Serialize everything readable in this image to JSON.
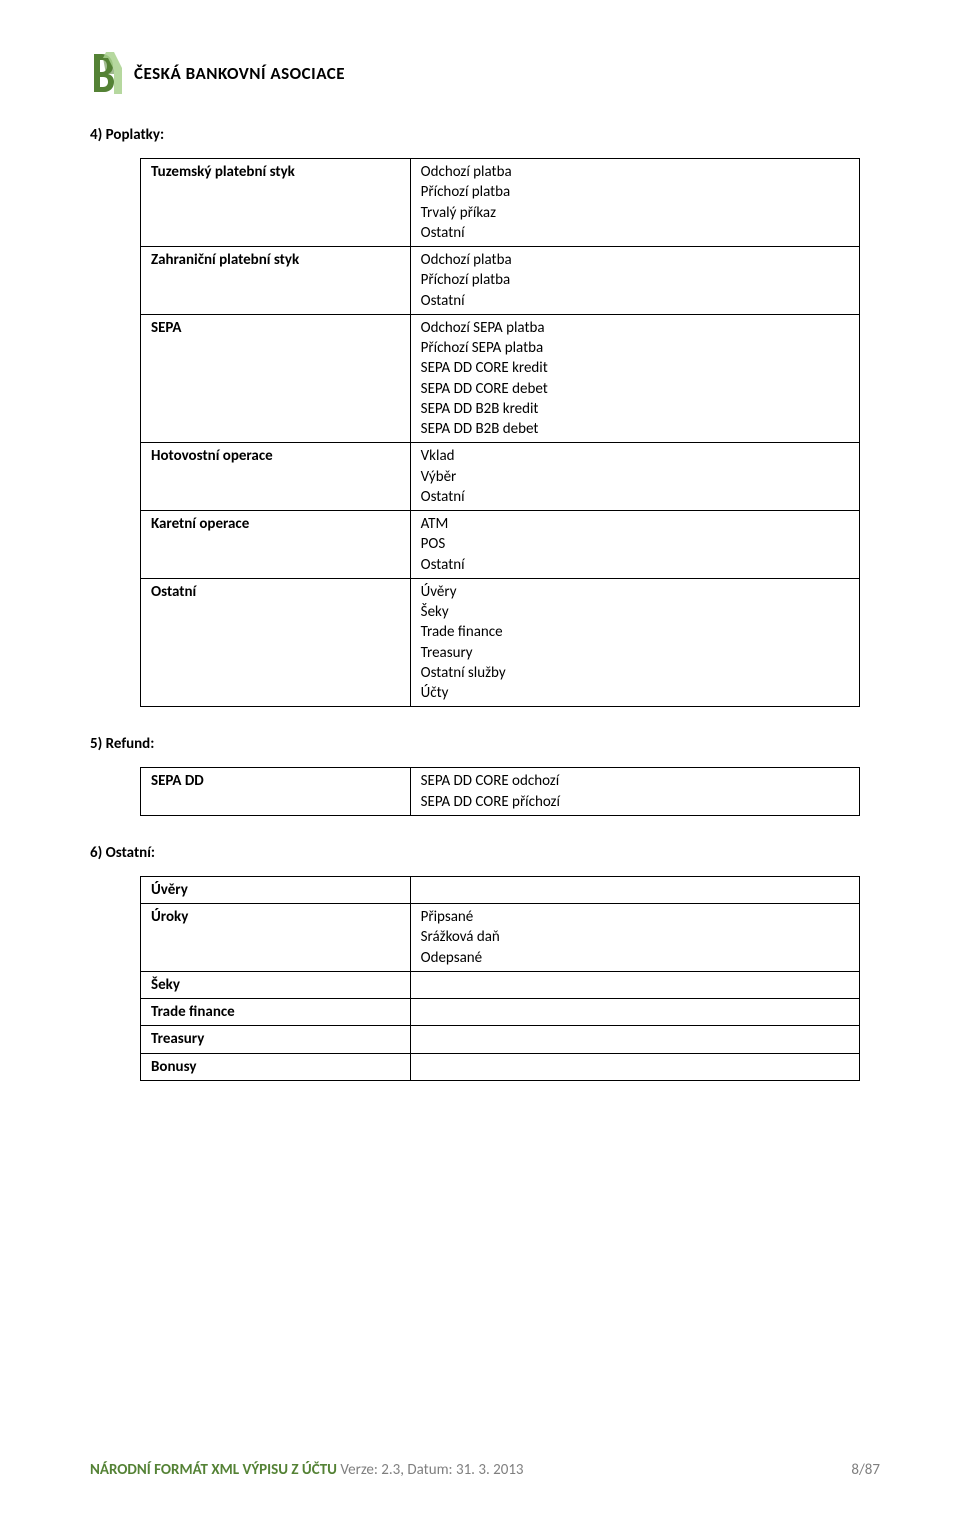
{
  "header": {
    "org_name": "ČESKÁ BANKOVNÍ ASOCIACE"
  },
  "section4": {
    "heading": "4) Poplatky:",
    "rows": [
      {
        "label": "Tuzemský platební styk",
        "values": "Odchozí platba\nPříchozí platba\nTrvalý příkaz\nOstatní"
      },
      {
        "label": "Zahraniční platební styk",
        "values": "Odchozí platba\nPříchozí platba\nOstatní"
      },
      {
        "label": "SEPA",
        "values": "Odchozí SEPA platba\nPříchozí SEPA platba\nSEPA DD CORE kredit\nSEPA DD CORE debet\nSEPA DD B2B kredit\nSEPA DD B2B debet"
      },
      {
        "label": "Hotovostní operace",
        "values": "Vklad\nVýběr\nOstatní"
      },
      {
        "label": "Karetní operace",
        "values": "ATM\nPOS\nOstatní"
      },
      {
        "label": "Ostatní",
        "values": "Úvěry\nŠeky\nTrade finance\nTreasury\nOstatní služby\nÚčty"
      }
    ]
  },
  "section5": {
    "heading": "5) Refund:",
    "rows": [
      {
        "label": "SEPA DD",
        "values": "SEPA DD CORE odchozí\nSEPA DD CORE příchozí"
      }
    ]
  },
  "section6": {
    "heading": "6) Ostatní:",
    "rows": [
      {
        "label": "Úvěry",
        "values": ""
      },
      {
        "label": "Úroky",
        "values": "Připsané\nSrážková daň\nOdepsané"
      },
      {
        "label": "Šeky",
        "values": ""
      },
      {
        "label": "Trade finance",
        "values": ""
      },
      {
        "label": "Treasury",
        "values": ""
      },
      {
        "label": "Bonusy",
        "values": ""
      }
    ]
  },
  "footer": {
    "title": "NÁRODNÍ FORMÁT XML VÝPISU Z ÚČTU",
    "version": " Verze: 2.3, Datum: 31. 3. 2013",
    "page": "8/87"
  },
  "colors": {
    "border": "#000000",
    "footer_green": "#548235",
    "footer_gray": "#7f7f7f"
  }
}
